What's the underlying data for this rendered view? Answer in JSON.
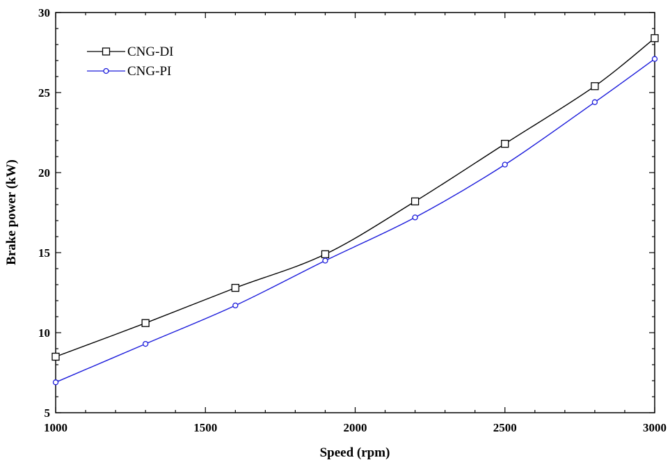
{
  "chart_data": {
    "type": "line",
    "title": "",
    "xlabel": "Speed (rpm)",
    "ylabel": "Brake power (kW)",
    "xlim": [
      1000,
      3000
    ],
    "ylim": [
      5,
      30
    ],
    "xticks": [
      1000,
      1500,
      2000,
      2500,
      3000
    ],
    "yticks": [
      5,
      10,
      15,
      20,
      25,
      30
    ],
    "grid": false,
    "legend_position": "top-left",
    "series": [
      {
        "name": "CNG-DI",
        "color": "#000000",
        "marker": "square",
        "points": [
          {
            "x": 1000,
            "y": 8.5
          },
          {
            "x": 1300,
            "y": 10.6
          },
          {
            "x": 1600,
            "y": 12.8
          },
          {
            "x": 1900,
            "y": 14.9
          },
          {
            "x": 2200,
            "y": 18.2
          },
          {
            "x": 2500,
            "y": 21.8
          },
          {
            "x": 2800,
            "y": 25.4
          },
          {
            "x": 3000,
            "y": 28.4
          }
        ]
      },
      {
        "name": "CNG-PI",
        "color": "#1a1adb",
        "marker": "circle",
        "points": [
          {
            "x": 1000,
            "y": 6.9
          },
          {
            "x": 1300,
            "y": 9.3
          },
          {
            "x": 1600,
            "y": 11.7
          },
          {
            "x": 1900,
            "y": 14.5
          },
          {
            "x": 2200,
            "y": 17.2
          },
          {
            "x": 2500,
            "y": 20.5
          },
          {
            "x": 2800,
            "y": 24.4
          },
          {
            "x": 3000,
            "y": 27.1
          }
        ]
      }
    ]
  }
}
